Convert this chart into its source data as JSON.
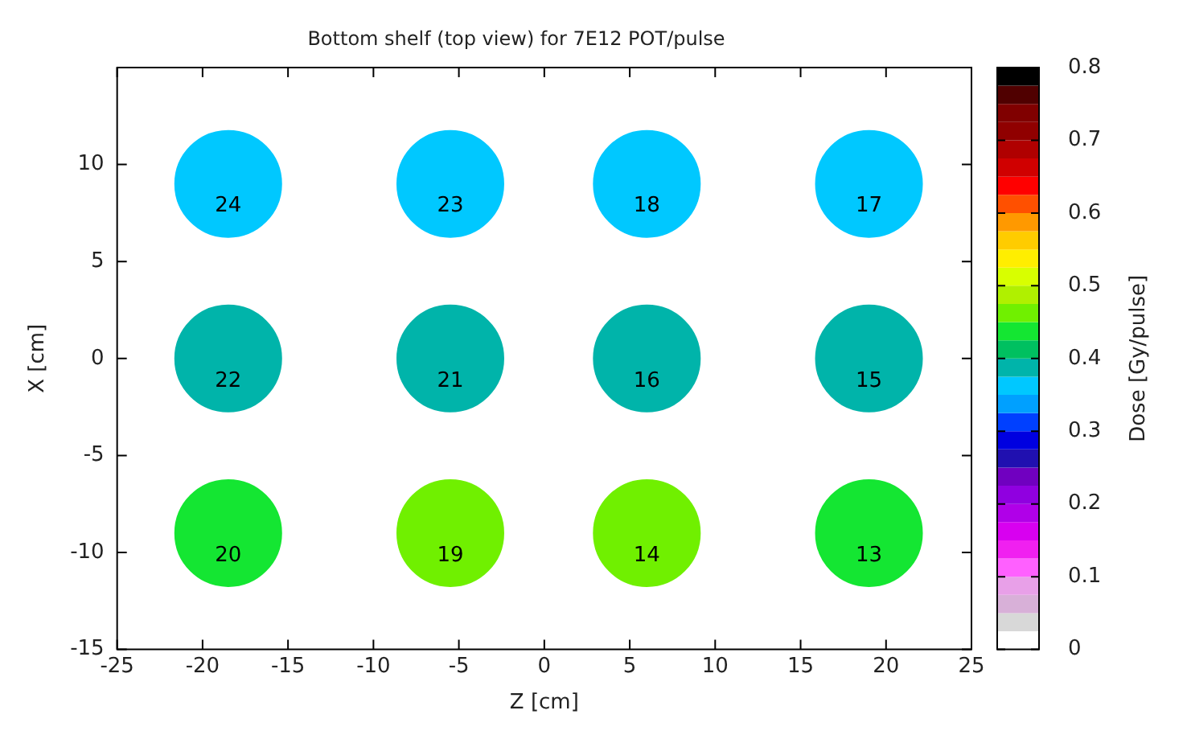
{
  "chart_data": {
    "type": "scatter",
    "title": "Bottom shelf (top view) for 7E12 POT/pulse",
    "xlabel": "Z [cm]",
    "ylabel": "X [cm]",
    "clabel": "Dose [Gy/pulse]",
    "x": [
      -18.5,
      -5.5,
      6,
      19,
      -18.5,
      -5.5,
      6,
      19,
      -18.5,
      -5.5,
      6,
      19
    ],
    "values": [
      9,
      9,
      9,
      9,
      0,
      0,
      0,
      0,
      -9,
      -9,
      -9,
      -9
    ],
    "cvalues": [
      0.36,
      0.36,
      0.36,
      0.36,
      0.39,
      0.39,
      0.39,
      0.39,
      0.44,
      0.46,
      0.46,
      0.44
    ],
    "annotations": [
      {
        "text": "24",
        "x": -18.5,
        "y": 9
      },
      {
        "text": "23",
        "x": -5.5,
        "y": 9
      },
      {
        "text": "18",
        "x": 6,
        "y": 9
      },
      {
        "text": "17",
        "x": 19,
        "y": 9
      },
      {
        "text": "22",
        "x": -18.5,
        "y": 0
      },
      {
        "text": "21",
        "x": -5.5,
        "y": 0
      },
      {
        "text": "16",
        "x": 6,
        "y": 0
      },
      {
        "text": "15",
        "x": 19,
        "y": 0
      },
      {
        "text": "20",
        "x": -18.5,
        "y": -9
      },
      {
        "text": "19",
        "x": -5.5,
        "y": -9
      },
      {
        "text": "14",
        "x": 6,
        "y": -9
      },
      {
        "text": "13",
        "x": 19,
        "y": -9
      }
    ],
    "xlim": [
      -25,
      25
    ],
    "xticks": [
      -25,
      -20,
      -15,
      -10,
      -5,
      0,
      5,
      10,
      15,
      20,
      25
    ],
    "ylim": [
      -15,
      15
    ],
    "yticks": [
      -15,
      -10,
      -5,
      0,
      5,
      10
    ],
    "clim": [
      0,
      0.8
    ],
    "cticks": [
      0,
      0.1,
      0.2,
      0.3,
      0.4,
      0.5,
      0.6,
      0.7,
      0.8
    ],
    "marker": "circle",
    "grid": false,
    "legend": false
  }
}
